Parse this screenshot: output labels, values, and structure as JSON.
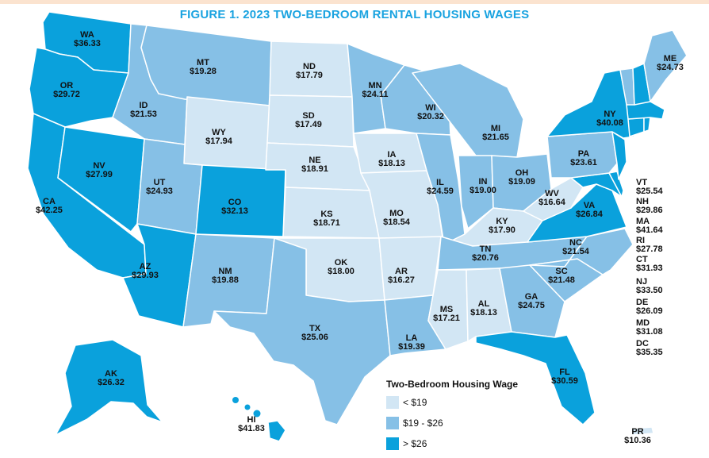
{
  "title": "FIGURE 1. 2023 TWO-BEDROOM RENTAL HOUSING WAGES",
  "colors": {
    "low": "#d2e6f4",
    "mid": "#86c0e6",
    "high": "#0aa1dc",
    "border": "#ffffff",
    "text": "#111111"
  },
  "legend": {
    "title": "Two-Bedroom Housing Wage",
    "items": [
      {
        "label": "< $19",
        "tier": "low"
      },
      {
        "label": "$19 - $26",
        "tier": "mid"
      },
      {
        "label": "> $26",
        "tier": "high"
      }
    ]
  },
  "states": {
    "WA": {
      "abbr": "WA",
      "wage": "$36.33",
      "tier": "high"
    },
    "OR": {
      "abbr": "OR",
      "wage": "$29.72",
      "tier": "high"
    },
    "CA": {
      "abbr": "CA",
      "wage": "$42.25",
      "tier": "high"
    },
    "NV": {
      "abbr": "NV",
      "wage": "$27.99",
      "tier": "high"
    },
    "ID": {
      "abbr": "ID",
      "wage": "$21.53",
      "tier": "mid"
    },
    "MT": {
      "abbr": "MT",
      "wage": "$19.28",
      "tier": "mid"
    },
    "WY": {
      "abbr": "WY",
      "wage": "$17.94",
      "tier": "low"
    },
    "UT": {
      "abbr": "UT",
      "wage": "$24.93",
      "tier": "mid"
    },
    "AZ": {
      "abbr": "AZ",
      "wage": "$29.93",
      "tier": "high"
    },
    "CO": {
      "abbr": "CO",
      "wage": "$32.13",
      "tier": "high"
    },
    "NM": {
      "abbr": "NM",
      "wage": "$19.88",
      "tier": "mid"
    },
    "ND": {
      "abbr": "ND",
      "wage": "$17.79",
      "tier": "low"
    },
    "SD": {
      "abbr": "SD",
      "wage": "$17.49",
      "tier": "low"
    },
    "NE": {
      "abbr": "NE",
      "wage": "$18.91",
      "tier": "low"
    },
    "KS": {
      "abbr": "KS",
      "wage": "$18.71",
      "tier": "low"
    },
    "OK": {
      "abbr": "OK",
      "wage": "$18.00",
      "tier": "low"
    },
    "TX": {
      "abbr": "TX",
      "wage": "$25.06",
      "tier": "mid"
    },
    "MN": {
      "abbr": "MN",
      "wage": "$24.11",
      "tier": "mid"
    },
    "IA": {
      "abbr": "IA",
      "wage": "$18.13",
      "tier": "low"
    },
    "MO": {
      "abbr": "MO",
      "wage": "$18.54",
      "tier": "low"
    },
    "AR": {
      "abbr": "AR",
      "wage": "$16.27",
      "tier": "low"
    },
    "LA": {
      "abbr": "LA",
      "wage": "$19.39",
      "tier": "mid"
    },
    "WI": {
      "abbr": "WI",
      "wage": "$20.32",
      "tier": "mid"
    },
    "IL": {
      "abbr": "IL",
      "wage": "$24.59",
      "tier": "mid"
    },
    "MI": {
      "abbr": "MI",
      "wage": "$21.65",
      "tier": "mid"
    },
    "IN": {
      "abbr": "IN",
      "wage": "$19.00",
      "tier": "mid"
    },
    "OH": {
      "abbr": "OH",
      "wage": "$19.09",
      "tier": "mid"
    },
    "KY": {
      "abbr": "KY",
      "wage": "$17.90",
      "tier": "low"
    },
    "TN": {
      "abbr": "TN",
      "wage": "$20.76",
      "tier": "mid"
    },
    "MS": {
      "abbr": "MS",
      "wage": "$17.21",
      "tier": "low"
    },
    "AL": {
      "abbr": "AL",
      "wage": "$18.13",
      "tier": "low"
    },
    "GA": {
      "abbr": "GA",
      "wage": "$24.75",
      "tier": "mid"
    },
    "FL": {
      "abbr": "FL",
      "wage": "$30.59",
      "tier": "high"
    },
    "SC": {
      "abbr": "SC",
      "wage": "$21.48",
      "tier": "mid"
    },
    "NC": {
      "abbr": "NC",
      "wage": "$21.54",
      "tier": "mid"
    },
    "VA": {
      "abbr": "VA",
      "wage": "$26.84",
      "tier": "high"
    },
    "WV": {
      "abbr": "WV",
      "wage": "$16.64",
      "tier": "low"
    },
    "PA": {
      "abbr": "PA",
      "wage": "$23.61",
      "tier": "mid"
    },
    "NY": {
      "abbr": "NY",
      "wage": "$40.08",
      "tier": "high"
    },
    "ME": {
      "abbr": "ME",
      "wage": "$24.73",
      "tier": "mid"
    },
    "AK": {
      "abbr": "AK",
      "wage": "$26.32",
      "tier": "high"
    },
    "HI": {
      "abbr": "HI",
      "wage": "$41.83",
      "tier": "high"
    },
    "PR": {
      "abbr": "PR",
      "wage": "$10.36",
      "tier": "low"
    },
    "VT": {
      "abbr": "VT",
      "wage": "$25.54",
      "tier": "mid"
    },
    "NH": {
      "abbr": "NH",
      "wage": "$29.86",
      "tier": "high"
    },
    "MA": {
      "abbr": "MA",
      "wage": "$41.64",
      "tier": "high"
    },
    "RI": {
      "abbr": "RI",
      "wage": "$27.78",
      "tier": "high"
    },
    "CT": {
      "abbr": "CT",
      "wage": "$31.93",
      "tier": "high"
    },
    "NJ": {
      "abbr": "NJ",
      "wage": "$33.50",
      "tier": "high"
    },
    "DE": {
      "abbr": "DE",
      "wage": "$26.09",
      "tier": "high"
    },
    "MD": {
      "abbr": "MD",
      "wage": "$31.08",
      "tier": "high"
    },
    "DC": {
      "abbr": "DC",
      "wage": "$35.35",
      "tier": "high"
    }
  }
}
